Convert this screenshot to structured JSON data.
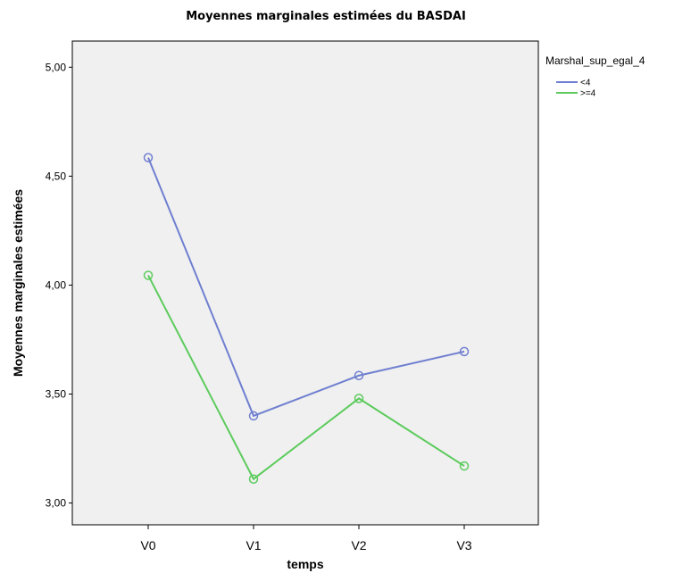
{
  "chart_data": {
    "type": "line",
    "title": "Moyennes marginales estimées du BASDAI",
    "xlabel": "temps",
    "ylabel": "Moyennes marginales estimées",
    "categories": [
      "V0",
      "V1",
      "V2",
      "V3"
    ],
    "ylim": [
      2.9,
      5.12
    ],
    "yticks": [
      3.0,
      3.5,
      4.0,
      4.5,
      5.0
    ],
    "ytick_labels": [
      "3,00",
      "3,50",
      "4,00",
      "4,50",
      "5,00"
    ],
    "legend_title": "Marshal_sup_egal_4",
    "legend_position": "top-right",
    "grid": false,
    "plot_background": "#f0f0f0",
    "series": [
      {
        "name": "<4",
        "color": "#6f7fd0",
        "values": [
          4.585,
          3.4,
          3.585,
          3.695
        ]
      },
      {
        "name": ">=4",
        "color": "#5ccb5c",
        "values": [
          4.045,
          3.11,
          3.48,
          3.17
        ]
      }
    ]
  }
}
